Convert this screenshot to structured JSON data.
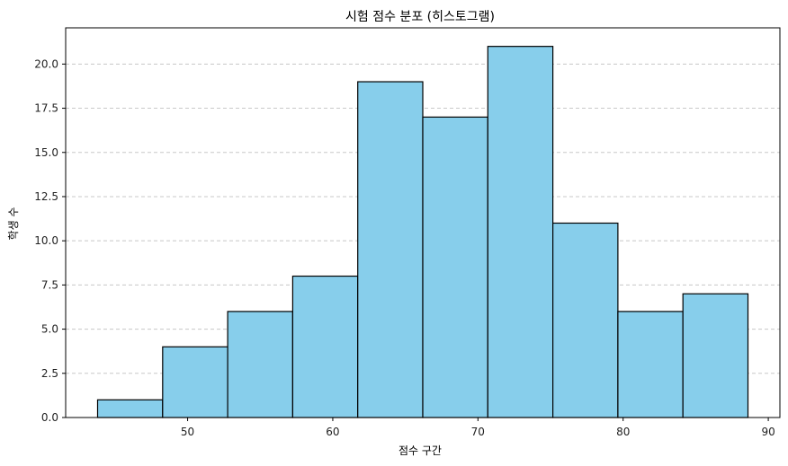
{
  "chart_data": {
    "type": "bar",
    "subtype": "histogram",
    "title": "시험 점수 분포 (히스토그램)",
    "xlabel": "점수 구간",
    "ylabel": "학생 수",
    "bin_edges": [
      43.8,
      48.28,
      52.76,
      57.24,
      61.72,
      66.2,
      70.68,
      75.16,
      79.64,
      84.12,
      88.6
    ],
    "values": [
      1,
      4,
      6,
      8,
      19,
      17,
      21,
      11,
      6,
      7
    ],
    "xlim": [
      41.6,
      90.8
    ],
    "ylim": [
      0,
      22.05
    ],
    "xticks": [
      50,
      60,
      70,
      80,
      90
    ],
    "xtick_labels": [
      "50",
      "60",
      "70",
      "80",
      "90"
    ],
    "yticks": [
      0,
      2.5,
      5,
      7.5,
      10,
      12.5,
      15,
      17.5,
      20
    ],
    "ytick_labels": [
      "0.0",
      "2.5",
      "5.0",
      "7.5",
      "10.0",
      "12.5",
      "15.0",
      "17.5",
      "20.0"
    ],
    "grid": {
      "axis": "y",
      "style": "dashed",
      "color": "#c8c8c8"
    },
    "bar_color": "#87ceeb",
    "edge_color": "#000000",
    "legend": null
  }
}
